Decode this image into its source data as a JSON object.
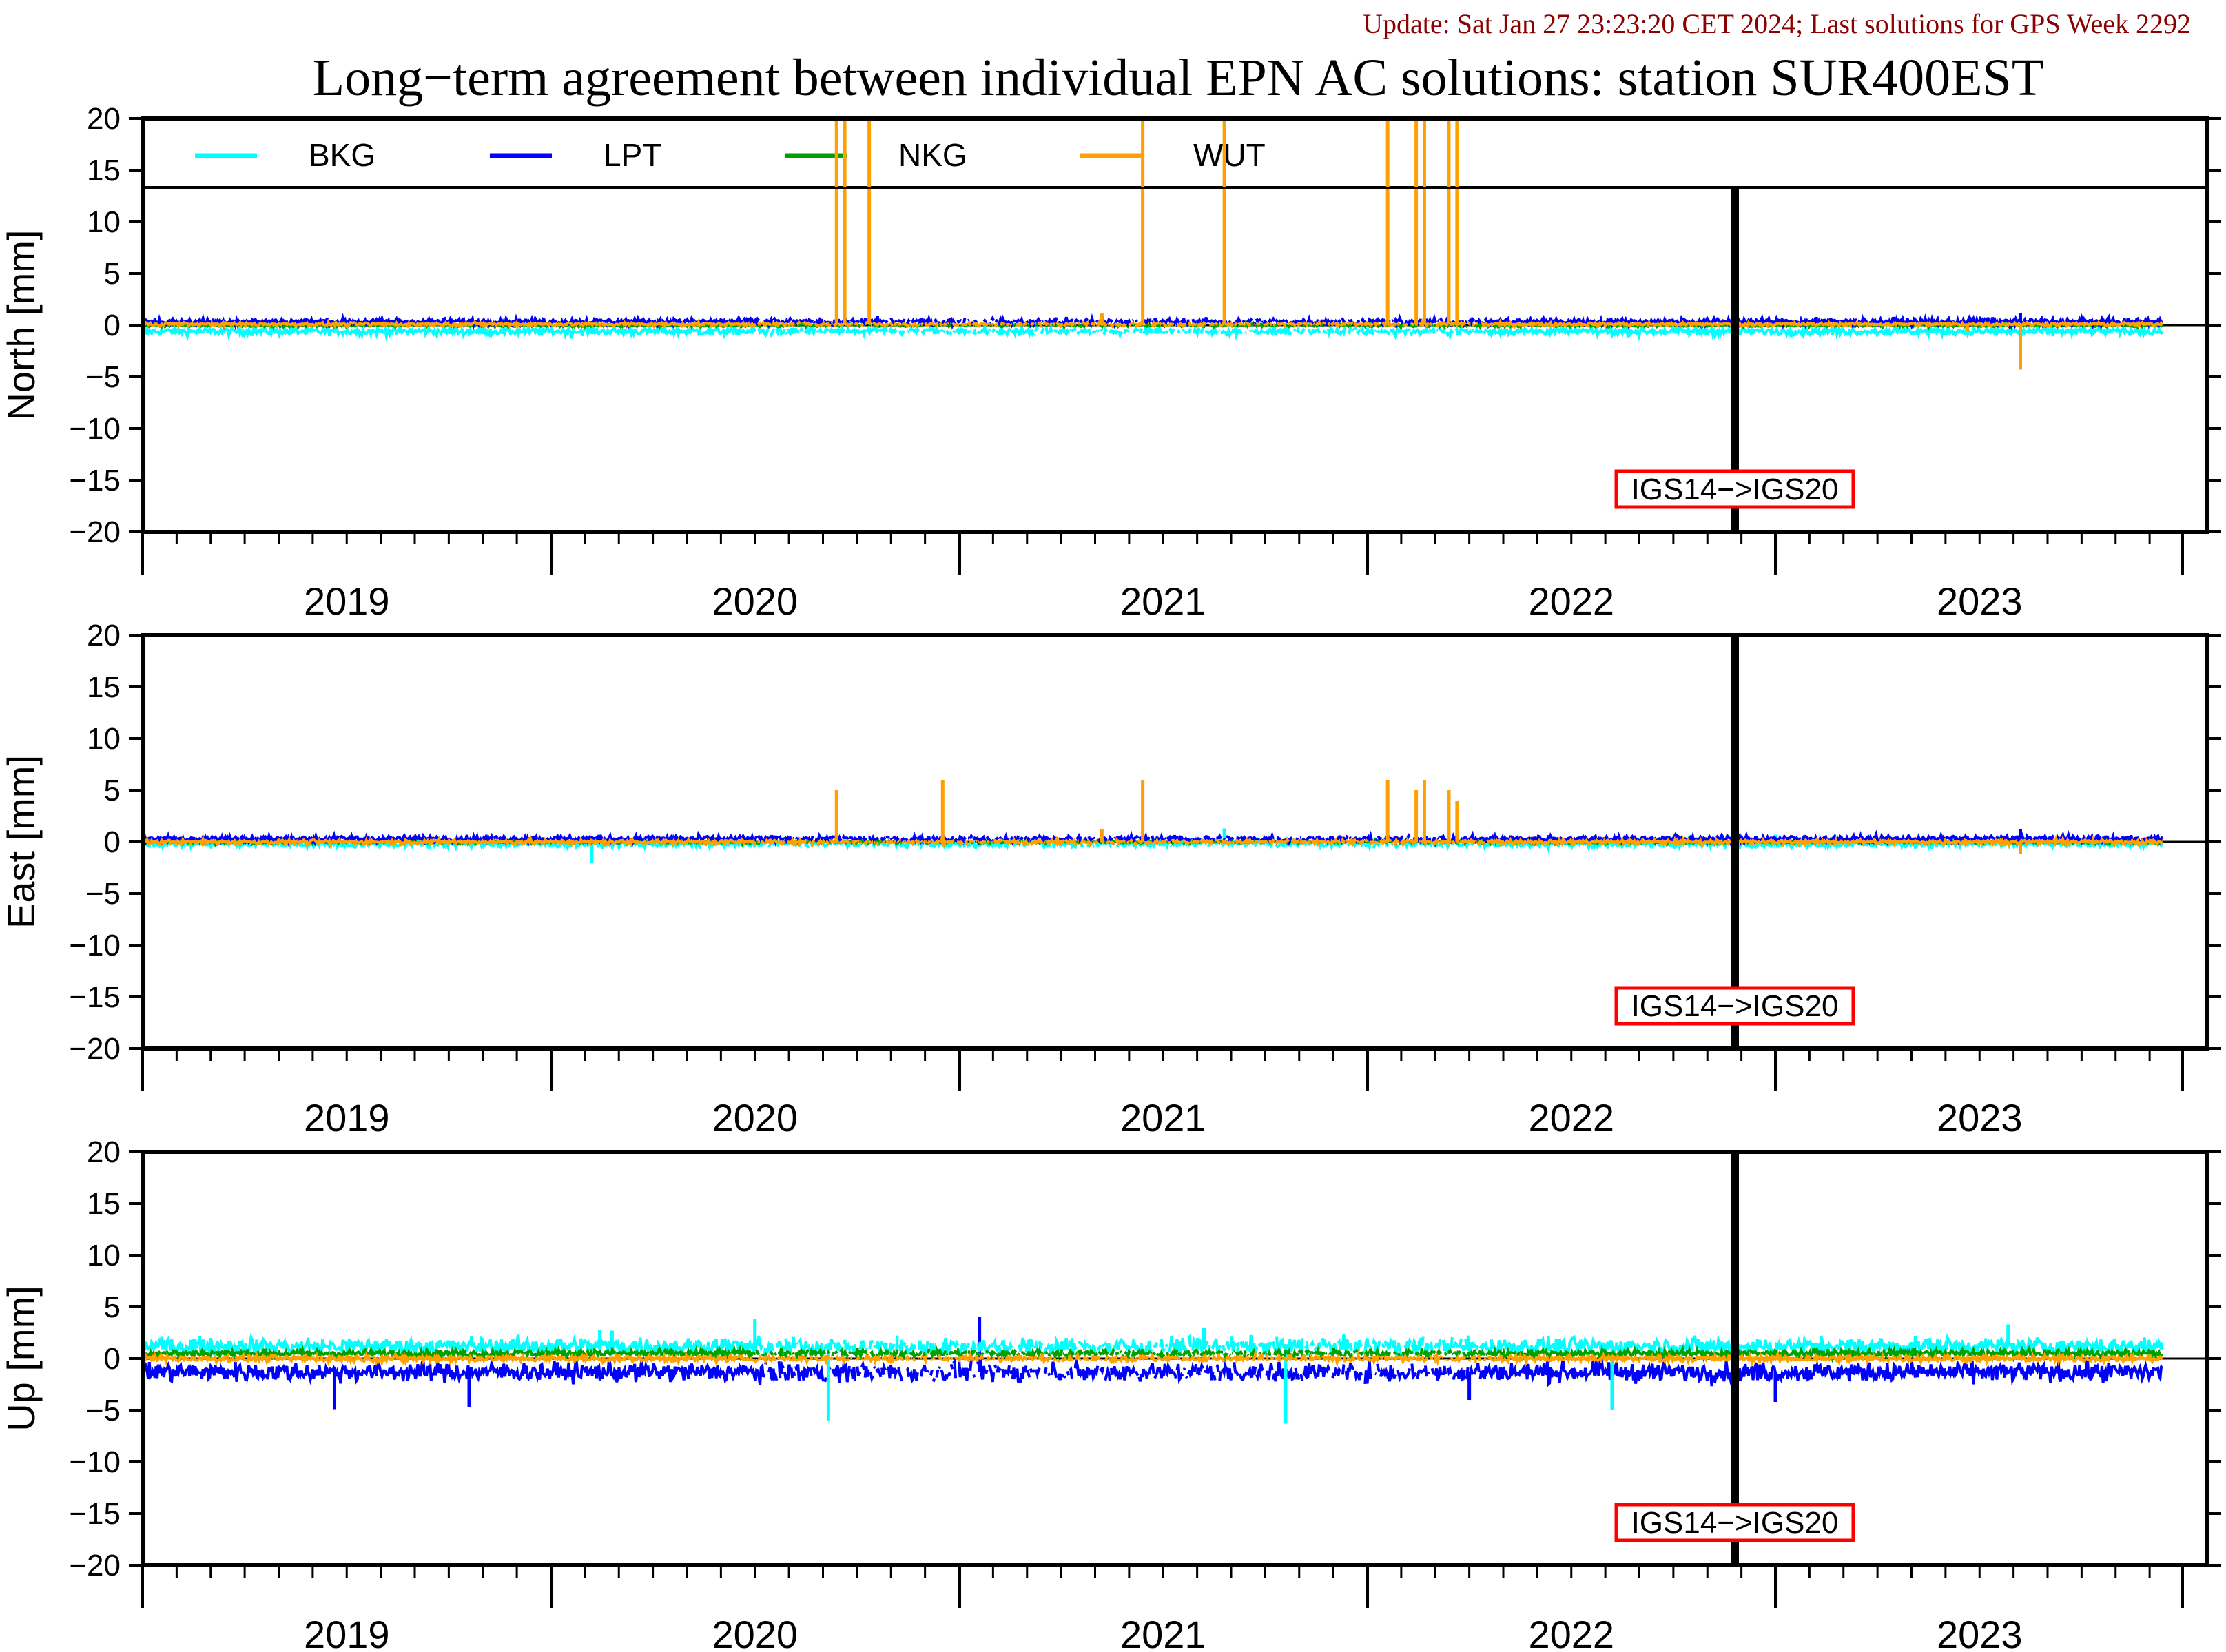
{
  "header": {
    "update_text": "Update: Sat Jan 27 23:23:20 CET 2024; Last solutions for GPS Week 2292",
    "title": "Long−term agreement between individual EPN AC solutions: station SUR400EST"
  },
  "colors": {
    "BKG": "#00ffff",
    "LPT": "#0000ff",
    "NKG": "#00a000",
    "WUT": "#ffa000",
    "update_text": "#8b0000",
    "frame_change_box": "#ff0000"
  },
  "legend": [
    "BKG",
    "LPT",
    "NKG",
    "WUT"
  ],
  "frame_change": {
    "label": "IGS14−>IGS20",
    "date": 2022.93
  },
  "chart_data": [
    {
      "type": "line",
      "ylabel": "North [mm]",
      "ylim": [
        -20,
        20
      ],
      "yticks": [
        "20",
        "15",
        "10",
        "5",
        "0",
        "−5",
        "−10",
        "−15",
        "−20"
      ],
      "xlim": [
        2018.5,
        2023.47
      ],
      "x_tick_labels": [
        "2019",
        "2020",
        "2021",
        "2022",
        "2023"
      ],
      "series": [
        {
          "name": "BKG",
          "mean": -0.6,
          "noise": 0.35,
          "spikes": [
            [
              2019.55,
              -1.3
            ],
            [
              2020.6,
              -1.0
            ],
            [
              2021.3,
              -0.9
            ],
            [
              2022.1,
              -1.0
            ]
          ]
        },
        {
          "name": "LPT",
          "mean": 0.35,
          "noise": 0.3,
          "spikes": [
            [
              2020.3,
              0.9
            ],
            [
              2022.6,
              0.8
            ],
            [
              2023.1,
              1.2
            ]
          ]
        },
        {
          "name": "NKG",
          "mean": 0.0,
          "noise": 0.15,
          "spikes": []
        },
        {
          "name": "WUT",
          "mean": 0.1,
          "noise": 0.15,
          "spikes": [
            [
              2020.2,
              25
            ],
            [
              2020.22,
              25
            ],
            [
              2020.28,
              25
            ],
            [
              2020.95,
              25
            ],
            [
              2021.15,
              25
            ],
            [
              2021.55,
              25
            ],
            [
              2021.62,
              25
            ],
            [
              2021.64,
              25
            ],
            [
              2021.7,
              25
            ],
            [
              2021.72,
              25
            ],
            [
              2020.85,
              1.2
            ],
            [
              2023.1,
              -4.3
            ],
            [
              2022.97,
              -0.6
            ]
          ]
        }
      ]
    },
    {
      "type": "line",
      "ylabel": "East [mm]",
      "ylim": [
        -20,
        20
      ],
      "yticks": [
        "20",
        "15",
        "10",
        "5",
        "0",
        "−5",
        "−10",
        "−15",
        "−20"
      ],
      "xlim": [
        2018.5,
        2023.47
      ],
      "x_tick_labels": [
        "2019",
        "2020",
        "2021",
        "2022",
        "2023"
      ],
      "series": [
        {
          "name": "BKG",
          "mean": -0.2,
          "noise": 0.3,
          "spikes": [
            [
              2019.6,
              -2.0
            ],
            [
              2021.15,
              1.3
            ],
            [
              2022.5,
              0.7
            ]
          ]
        },
        {
          "name": "LPT",
          "mean": 0.3,
          "noise": 0.3,
          "spikes": [
            [
              2023.1,
              1.2
            ]
          ]
        },
        {
          "name": "NKG",
          "mean": 0.0,
          "noise": 0.15,
          "spikes": []
        },
        {
          "name": "WUT",
          "mean": 0.0,
          "noise": 0.2,
          "spikes": [
            [
              2020.2,
              5.0
            ],
            [
              2020.46,
              6.0
            ],
            [
              2020.95,
              6.0
            ],
            [
              2021.55,
              6.0
            ],
            [
              2021.62,
              5.0
            ],
            [
              2021.64,
              6.0
            ],
            [
              2021.7,
              5.0
            ],
            [
              2021.72,
              4.0
            ],
            [
              2020.85,
              1.2
            ],
            [
              2023.1,
              -1.2
            ]
          ]
        }
      ]
    },
    {
      "type": "line",
      "ylabel": "Up [mm]",
      "ylim": [
        -20,
        20
      ],
      "yticks": [
        "20",
        "15",
        "10",
        "5",
        "0",
        "−5",
        "−10",
        "−15",
        "−20"
      ],
      "xlim": [
        2018.5,
        2023.47
      ],
      "x_tick_labels": [
        "2019",
        "2020",
        "2021",
        "2022",
        "2023"
      ],
      "series": [
        {
          "name": "BKG",
          "mean": 1.2,
          "noise": 0.8,
          "spikes": [
            [
              2019.62,
              2.8
            ],
            [
              2019.65,
              2.7
            ],
            [
              2020.0,
              3.8
            ],
            [
              2020.18,
              -6.0
            ],
            [
              2021.3,
              -6.3
            ],
            [
              2021.1,
              3.0
            ],
            [
              2022.1,
              -5.0
            ],
            [
              2023.07,
              3.3
            ]
          ]
        },
        {
          "name": "LPT",
          "mean": -1.3,
          "noise": 0.9,
          "spikes": [
            [
              2018.97,
              -4.9
            ],
            [
              2019.3,
              -4.7
            ],
            [
              2020.55,
              4.0
            ],
            [
              2021.75,
              -4.0
            ],
            [
              2022.5,
              -4.2
            ]
          ]
        },
        {
          "name": "NKG",
          "mean": 0.5,
          "noise": 0.35,
          "spikes": []
        },
        {
          "name": "WUT",
          "mean": 0.0,
          "noise": 0.3,
          "spikes": []
        }
      ]
    }
  ]
}
